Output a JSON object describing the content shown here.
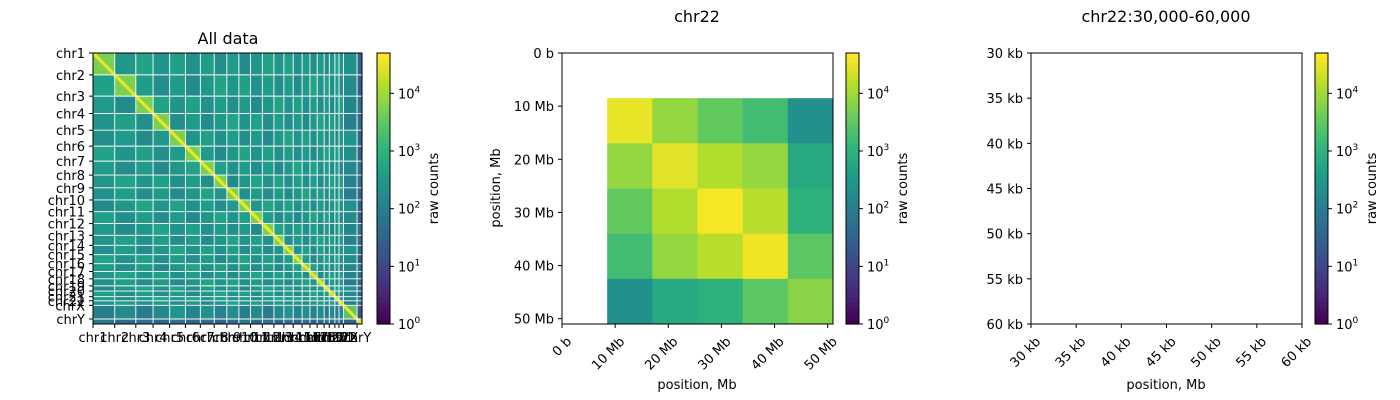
{
  "chart_data": [
    {
      "type": "heatmap",
      "title": "All data",
      "chromosomes": [
        "chr1",
        "chr2",
        "chr3",
        "chr4",
        "chr5",
        "chr6",
        "chr7",
        "chr8",
        "chr9",
        "chr10",
        "chr11",
        "chr12",
        "chr13",
        "chr14",
        "chr15",
        "chr16",
        "chr17",
        "chr18",
        "chr19",
        "chr20",
        "chr21",
        "chr22",
        "chrX",
        "chrY"
      ],
      "chromosome_sizes_mb": [
        249,
        242,
        198,
        190,
        181,
        171,
        159,
        145,
        138,
        134,
        135,
        133,
        114,
        107,
        102,
        90,
        83,
        80,
        59,
        64,
        47,
        51,
        156,
        57
      ],
      "colorbar": {
        "label": "raw counts",
        "scale": "log",
        "range": [
          1,
          50000
        ],
        "ticks": [
          "10^0",
          "10^1",
          "10^2",
          "10^3",
          "10^4"
        ],
        "colormap": "viridis"
      },
      "grid": true
    },
    {
      "type": "heatmap",
      "title": "chr22",
      "xlabel": "position, Mb",
      "ylabel": "position, Mb",
      "x_ticks": [
        "0 b",
        "10 Mb",
        "20 Mb",
        "30 Mb",
        "40 Mb",
        "50 Mb"
      ],
      "y_ticks": [
        "0 b",
        "10 Mb",
        "20 Mb",
        "30 Mb",
        "40 Mb",
        "50 Mb"
      ],
      "range_mb": [
        0,
        51
      ],
      "bin_edges_mb": [
        0,
        8.5,
        17,
        25.5,
        34,
        42.5,
        51
      ],
      "log10_values": [
        [
          null,
          null,
          null,
          null,
          null,
          null
        ],
        [
          null,
          4.55,
          3.95,
          3.55,
          3.25,
          2.35
        ],
        [
          null,
          3.95,
          4.5,
          4.15,
          3.95,
          2.85
        ],
        [
          null,
          3.55,
          4.15,
          4.65,
          4.2,
          3.0
        ],
        [
          null,
          3.25,
          3.95,
          4.2,
          4.6,
          3.5
        ],
        [
          null,
          2.35,
          2.85,
          3.0,
          3.5,
          3.85
        ]
      ],
      "colorbar": {
        "label": "raw counts",
        "scale": "log",
        "range": [
          1,
          50000
        ],
        "ticks": [
          "10^0",
          "10^1",
          "10^2",
          "10^3",
          "10^4"
        ],
        "colormap": "viridis"
      }
    },
    {
      "type": "heatmap",
      "title": "chr22:30,000-60,000",
      "xlabel": "position, Mb",
      "x_ticks": [
        "30 kb",
        "35 kb",
        "40 kb",
        "45 kb",
        "50 kb",
        "55 kb",
        "60 kb"
      ],
      "y_ticks": [
        "30 kb",
        "35 kb",
        "40 kb",
        "45 kb",
        "50 kb",
        "55 kb",
        "60 kb"
      ],
      "range_kb": [
        30,
        60
      ],
      "values": [],
      "colorbar": {
        "label": "raw counts",
        "scale": "log",
        "range": [
          1,
          50000
        ],
        "ticks": [
          "10^0",
          "10^1",
          "10^2",
          "10^3",
          "10^4"
        ],
        "colormap": "viridis"
      }
    }
  ]
}
